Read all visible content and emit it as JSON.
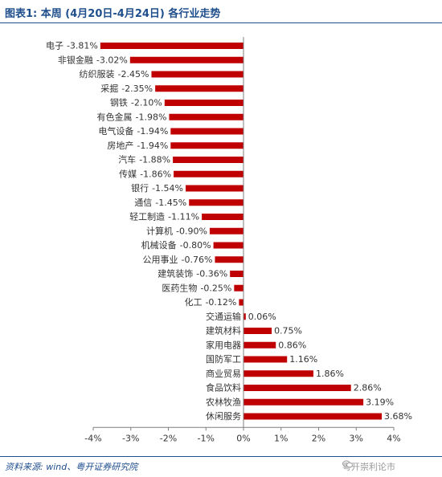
{
  "title": "图表1: 本周 (4月20日-4月24日) 各行业走势",
  "source": "资料来源: wind、粤开证券研究院",
  "watermark": "粤开崇利论市",
  "colors": {
    "bar": "#c00000",
    "axis": "#7f7f7f",
    "text": "#333333",
    "title": "#1f4e8c"
  },
  "chart_data": {
    "type": "bar",
    "orientation": "horizontal",
    "categories": [
      "电子",
      "非银金融",
      "纺织服装",
      "采掘",
      "钢铁",
      "有色金属",
      "电气设备",
      "房地产",
      "汽车",
      "传媒",
      "银行",
      "通信",
      "轻工制造",
      "计算机",
      "机械设备",
      "公用事业",
      "建筑装饰",
      "医药生物",
      "化工",
      "交通运输",
      "建筑材料",
      "家用电器",
      "国防军工",
      "商业贸易",
      "食品饮料",
      "农林牧渔",
      "休闲服务"
    ],
    "values": [
      -3.81,
      -3.02,
      -2.45,
      -2.35,
      -2.1,
      -1.98,
      -1.94,
      -1.94,
      -1.88,
      -1.86,
      -1.54,
      -1.45,
      -1.11,
      -0.9,
      -0.8,
      -0.76,
      -0.36,
      -0.25,
      -0.12,
      0.06,
      0.75,
      0.86,
      1.16,
      1.86,
      2.86,
      3.19,
      3.68
    ],
    "data_labels": [
      "-3.81%",
      "-3.02%",
      "-2.45%",
      "-2.35%",
      "-2.10%",
      "-1.98%",
      "-1.94%",
      "-1.94%",
      "-1.88%",
      "-1.86%",
      "-1.54%",
      "-1.45%",
      "-1.11%",
      "-0.90%",
      "-0.80%",
      "-0.76%",
      "-0.36%",
      "-0.25%",
      "-0.12%",
      "0.06%",
      "0.75%",
      "0.86%",
      "1.16%",
      "1.86%",
      "2.86%",
      "3.19%",
      "3.68%"
    ],
    "xticks": [
      "-4%",
      "-3%",
      "-2%",
      "-1%",
      "0%",
      "1%",
      "2%",
      "3%",
      "4%"
    ],
    "xlim": [
      -4,
      4
    ],
    "grid": false
  }
}
